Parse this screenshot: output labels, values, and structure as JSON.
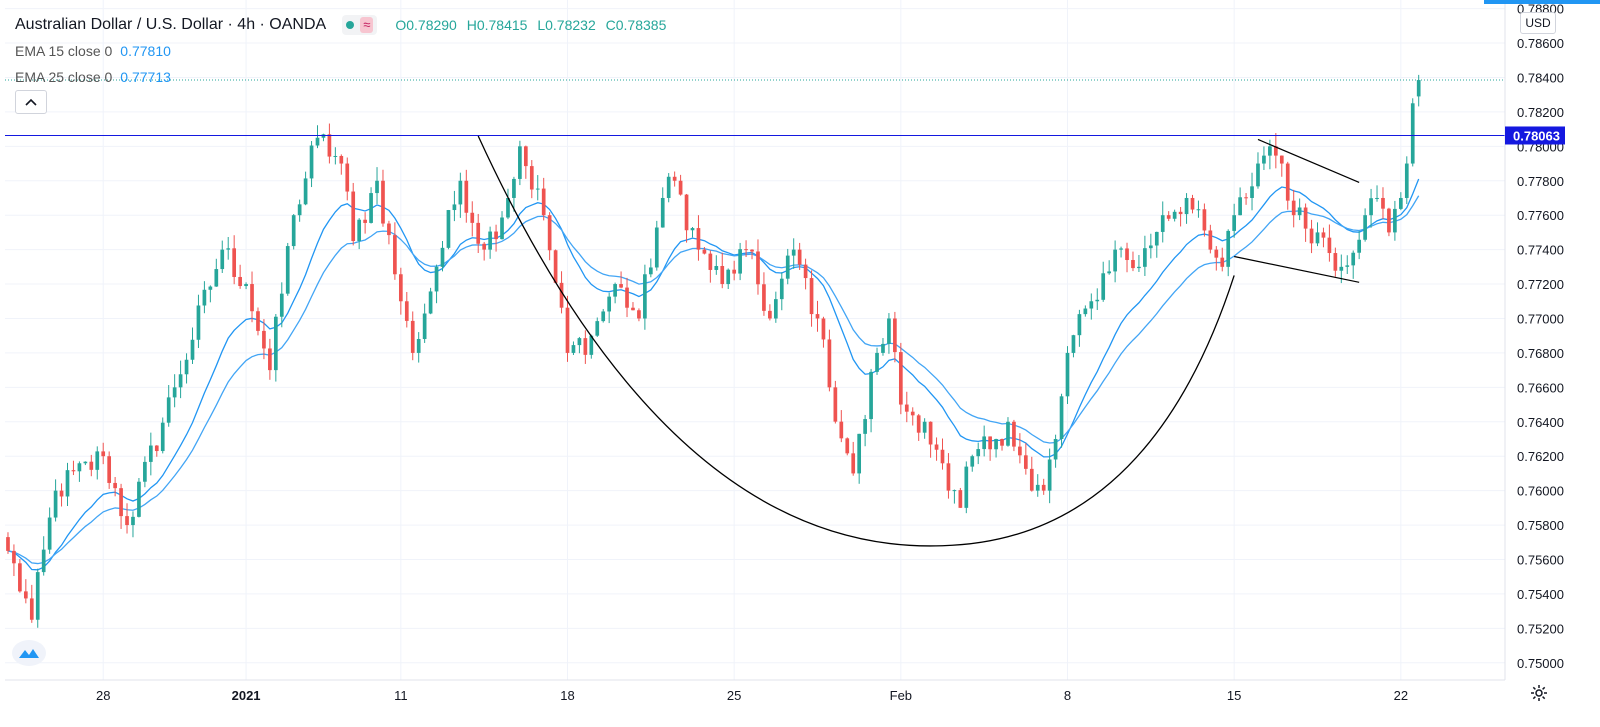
{
  "header": {
    "symbol": "Australian Dollar / U.S. Dollar · 4h · OANDA",
    "ohlc": {
      "open": "O0.78290",
      "high": "H0.78415",
      "low": "L0.78232",
      "close": "C0.78385"
    },
    "pill_icon": "≈"
  },
  "indicators": [
    {
      "label": "EMA 15 close 0",
      "value": "0.77810",
      "color": "#2196f3"
    },
    {
      "label": "EMA 25 close 0",
      "value": "0.77713",
      "color": "#42a5f5"
    }
  ],
  "price_axis": {
    "currency": "USD",
    "highlight_label": "0.78063",
    "highlight_color": "#1418e0"
  },
  "icons": {
    "collapse": "chevron-up-icon",
    "logo": "tradingview-logo-icon",
    "settings": "gear-icon"
  },
  "colors": {
    "up": "#26a69a",
    "down": "#ef5350",
    "grid": "#f0f3fa",
    "level": "#1418e0",
    "pattern": "#000000"
  },
  "chart_data": {
    "type": "candlestick",
    "title": "Australian Dollar / U.S. Dollar · 4h · OANDA",
    "ylim": [
      0.749,
      0.7885
    ],
    "y_ticks": [
      0.75,
      0.752,
      0.754,
      0.756,
      0.758,
      0.76,
      0.762,
      0.764,
      0.766,
      0.768,
      0.77,
      0.772,
      0.774,
      0.776,
      0.778,
      0.78,
      0.782,
      0.784,
      0.786,
      0.788
    ],
    "y_tick_labels": [
      "0.75000",
      "0.75200",
      "0.75400",
      "0.75600",
      "0.75800",
      "0.76000",
      "0.76200",
      "0.76400",
      "0.76600",
      "0.76800",
      "0.77000",
      "0.77200",
      "0.77400",
      "0.77600",
      "0.77800",
      "0.78000",
      "0.78200",
      "0.78400",
      "0.78600",
      "0.78800"
    ],
    "x_ticks": [
      {
        "label": "28",
        "bar": 16
      },
      {
        "label": "2021",
        "bar": 40,
        "bold": true
      },
      {
        "label": "11",
        "bar": 66
      },
      {
        "label": "18",
        "bar": 94
      },
      {
        "label": "25",
        "bar": 122
      },
      {
        "label": "Feb",
        "bar": 150
      },
      {
        "label": "8",
        "bar": 178
      },
      {
        "label": "15",
        "bar": 206
      },
      {
        "label": "22",
        "bar": 234
      }
    ],
    "total_slots": 252,
    "series": [
      {
        "name": "AUDUSD",
        "anchors": [
          [
            0,
            0.7565
          ],
          [
            4,
            0.7525
          ],
          [
            8,
            0.76
          ],
          [
            16,
            0.762
          ],
          [
            20,
            0.758
          ],
          [
            28,
            0.766
          ],
          [
            36,
            0.774
          ],
          [
            40,
            0.772
          ],
          [
            44,
            0.767
          ],
          [
            48,
            0.776
          ],
          [
            52,
            0.7805
          ],
          [
            56,
            0.779
          ],
          [
            58,
            0.7745
          ],
          [
            62,
            0.778
          ],
          [
            66,
            0.771
          ],
          [
            68,
            0.768
          ],
          [
            72,
            0.773
          ],
          [
            76,
            0.778
          ],
          [
            80,
            0.774
          ],
          [
            84,
            0.777
          ],
          [
            86,
            0.78
          ],
          [
            90,
            0.776
          ],
          [
            94,
            0.768
          ],
          [
            98,
            0.769
          ],
          [
            102,
            0.772
          ],
          [
            106,
            0.77
          ],
          [
            110,
            0.777
          ],
          [
            112,
            0.778
          ],
          [
            116,
            0.774
          ],
          [
            120,
            0.772
          ],
          [
            124,
            0.774
          ],
          [
            128,
            0.77
          ],
          [
            132,
            0.774
          ],
          [
            136,
            0.77
          ],
          [
            138,
            0.766
          ],
          [
            142,
            0.761
          ],
          [
            146,
            0.768
          ],
          [
            148,
            0.77
          ],
          [
            150,
            0.765
          ],
          [
            154,
            0.764
          ],
          [
            158,
            0.76
          ],
          [
            160,
            0.759
          ],
          [
            162,
            0.762
          ],
          [
            166,
            0.763
          ],
          [
            168,
            0.764
          ],
          [
            172,
            0.76
          ],
          [
            174,
            0.76
          ],
          [
            176,
            0.763
          ],
          [
            178,
            0.768
          ],
          [
            182,
            0.771
          ],
          [
            186,
            0.774
          ],
          [
            190,
            0.773
          ],
          [
            194,
            0.776
          ],
          [
            198,
            0.777
          ],
          [
            202,
            0.774
          ],
          [
            204,
            0.773
          ],
          [
            206,
            0.776
          ],
          [
            208,
            0.777
          ],
          [
            210,
            0.779
          ],
          [
            212,
            0.78
          ],
          [
            214,
            0.779
          ],
          [
            216,
            0.776
          ],
          [
            220,
            0.775
          ],
          [
            224,
            0.773
          ],
          [
            228,
            0.776
          ],
          [
            230,
            0.777
          ],
          [
            232,
            0.775
          ],
          [
            234,
            0.777
          ],
          [
            235,
            0.779
          ],
          [
            236,
            0.7825
          ],
          [
            237,
            0.78385
          ]
        ]
      },
      {
        "name": "EMA 15 close 0",
        "period": 15,
        "last": 0.7781,
        "color": "#2196f3"
      },
      {
        "name": "EMA 25 close 0",
        "period": 25,
        "last": 0.77713,
        "color": "#42a5f5"
      }
    ],
    "last_candle": {
      "open": 0.7829,
      "high": 0.78415,
      "low": 0.78232,
      "close": 0.78385
    },
    "horizontal_level": 0.78063,
    "cup_pattern": {
      "left_rim": {
        "bar": 79,
        "price": 0.7806
      },
      "bottom": {
        "bar": 157,
        "price": 0.7568
      },
      "right_rim": {
        "bar": 206,
        "price": 0.7725
      }
    },
    "flag_pattern": {
      "upper": [
        {
          "bar": 210,
          "price": 0.7804
        },
        {
          "bar": 227,
          "price": 0.7779
        }
      ],
      "lower": [
        {
          "bar": 206,
          "price": 0.7736
        },
        {
          "bar": 227,
          "price": 0.7721
        }
      ]
    }
  }
}
